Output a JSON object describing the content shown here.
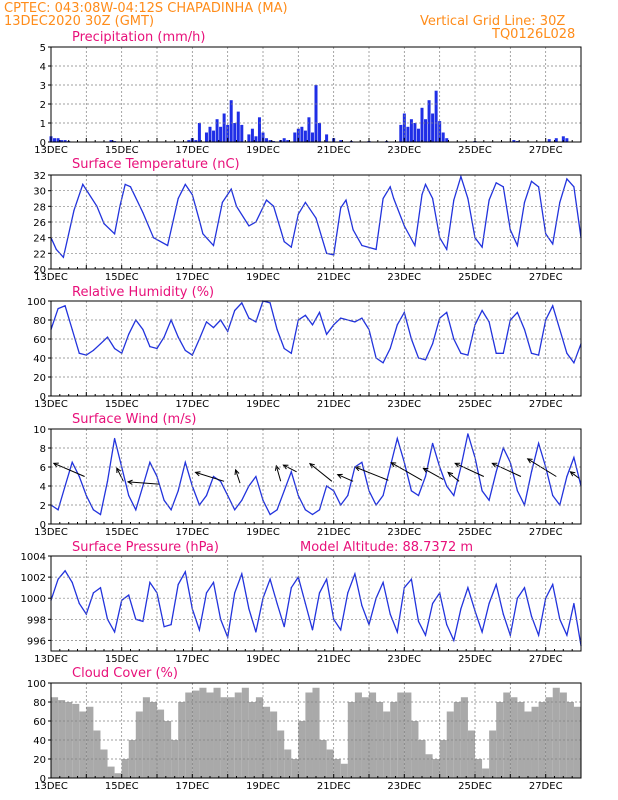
{
  "header": {
    "line1": "CPTEC:   043:08W-04:12S   CHAPADINHA (MA)",
    "line2": "13DEC2020 30Z (GMT)",
    "grid_note": "Vertical Grid Line: 30Z",
    "model_code": "TQ0126L028"
  },
  "colors": {
    "header": "#ff8c1a",
    "title": "#e8107a",
    "line": "#2233dd",
    "bar": "#1f2ee6",
    "cloud": "#a9a9a9",
    "grid": "#808080"
  },
  "chart_data": [
    {
      "type": "bar",
      "title": "Precipitation (mm/h)",
      "x_unit": "days from 13DEC 00Z",
      "x_range": [
        0,
        15
      ],
      "x_tick_labels": [
        "13DEC",
        "15DEC",
        "17DEC",
        "19DEC",
        "21DEC",
        "23DEC",
        "25DEC",
        "27DEC"
      ],
      "ylim": [
        0,
        5
      ],
      "y_ticks": [
        0,
        1,
        2,
        3,
        4,
        5
      ],
      "grid": true,
      "x": [
        0.0,
        0.1,
        0.2,
        0.3,
        0.4,
        0.5,
        1.7,
        1.8,
        3.9,
        4.0,
        4.1,
        4.2,
        4.4,
        4.5,
        4.6,
        4.7,
        4.8,
        4.9,
        5.0,
        5.1,
        5.2,
        5.3,
        5.4,
        5.6,
        5.7,
        5.8,
        5.9,
        6.0,
        6.1,
        6.2,
        6.3,
        6.5,
        6.6,
        6.7,
        6.9,
        7.0,
        7.1,
        7.2,
        7.3,
        7.4,
        7.5,
        7.6,
        7.8,
        8.0,
        8.2,
        8.5,
        9.0,
        9.5,
        9.9,
        10.0,
        10.1,
        10.2,
        10.3,
        10.4,
        10.5,
        10.6,
        10.7,
        10.8,
        10.9,
        11.0,
        11.1,
        11.2,
        12.0,
        13.1,
        13.2,
        14.1,
        14.3,
        14.5,
        14.6
      ],
      "values": [
        0.3,
        0.2,
        0.2,
        0.1,
        0.1,
        0.05,
        0.1,
        0.05,
        0.1,
        0.2,
        0.1,
        1.0,
        0.5,
        0.8,
        0.6,
        1.2,
        0.8,
        1.5,
        0.9,
        2.2,
        1.0,
        1.6,
        0.9,
        0.4,
        0.7,
        0.3,
        1.3,
        0.5,
        0.2,
        0.1,
        0.05,
        0.1,
        0.2,
        0.1,
        0.5,
        0.7,
        0.8,
        0.6,
        1.3,
        0.5,
        3.0,
        1.0,
        0.4,
        0.2,
        0.1,
        0.05,
        0.05,
        0.05,
        0.9,
        1.5,
        0.8,
        1.2,
        1.0,
        0.7,
        1.8,
        1.2,
        2.2,
        1.5,
        2.7,
        1.1,
        0.5,
        0.2,
        0.05,
        0.1,
        0.05,
        0.15,
        0.2,
        0.3,
        0.2
      ]
    },
    {
      "type": "line",
      "title": "Surface Temperature (nC)",
      "x_unit": "days from 13DEC 00Z",
      "x_range": [
        0,
        15
      ],
      "x_tick_labels": [
        "13DEC",
        "15DEC",
        "17DEC",
        "19DEC",
        "21DEC",
        "23DEC",
        "25DEC",
        "27DEC"
      ],
      "ylim": [
        20,
        32
      ],
      "y_ticks": [
        20,
        22,
        24,
        26,
        28,
        30,
        32
      ],
      "grid": true,
      "x": [
        0.0,
        0.15,
        0.35,
        0.65,
        0.9,
        1.3,
        1.5,
        1.8,
        1.95,
        2.1,
        2.25,
        2.6,
        2.9,
        3.3,
        3.6,
        3.8,
        4.0,
        4.2,
        4.3,
        4.6,
        4.85,
        5.1,
        5.25,
        5.6,
        5.8,
        6.1,
        6.3,
        6.5,
        6.6,
        6.8,
        7.0,
        7.2,
        7.5,
        7.8,
        8.0,
        8.2,
        8.35,
        8.55,
        8.8,
        9.2,
        9.4,
        9.6,
        9.7,
        10.0,
        10.3,
        10.5,
        10.6,
        10.8,
        11.0,
        11.2,
        11.4,
        11.6,
        11.8,
        12.0,
        12.2,
        12.4,
        12.6,
        12.8,
        13.0,
        13.2,
        13.4,
        13.6,
        13.8,
        14.0,
        14.2,
        14.4,
        14.6,
        14.8,
        15.0
      ],
      "values": [
        24.0,
        22.5,
        21.5,
        27.5,
        30.8,
        28.0,
        25.8,
        24.5,
        28.0,
        30.8,
        30.5,
        27.2,
        24.0,
        23.0,
        29.0,
        30.8,
        29.5,
        26.2,
        24.5,
        23.0,
        28.5,
        30.2,
        28.0,
        25.5,
        26.0,
        28.8,
        28.0,
        25.0,
        23.5,
        22.8,
        27.0,
        28.5,
        26.5,
        22.0,
        21.8,
        27.8,
        28.8,
        25.0,
        23.0,
        22.5,
        29.0,
        30.5,
        29.0,
        25.5,
        23.0,
        29.5,
        30.8,
        29.0,
        24.0,
        22.5,
        28.8,
        31.8,
        29.0,
        24.0,
        22.8,
        28.8,
        31.0,
        30.5,
        25.0,
        23.0,
        28.5,
        31.2,
        30.5,
        24.5,
        23.2,
        28.5,
        31.5,
        30.5,
        24.0
      ]
    },
    {
      "type": "line",
      "title": "Relative Humidity (%)",
      "x_unit": "days from 13DEC 00Z",
      "x_range": [
        0,
        15
      ],
      "x_tick_labels": [
        "13DEC",
        "15DEC",
        "17DEC",
        "19DEC",
        "21DEC",
        "23DEC",
        "25DEC",
        "27DEC"
      ],
      "ylim": [
        0,
        100
      ],
      "y_ticks": [
        0,
        20,
        40,
        60,
        80,
        100
      ],
      "grid": true,
      "x": [
        0.0,
        0.2,
        0.4,
        0.6,
        0.8,
        1.0,
        1.2,
        1.4,
        1.6,
        1.8,
        2.0,
        2.2,
        2.4,
        2.6,
        2.8,
        3.0,
        3.2,
        3.4,
        3.6,
        3.8,
        4.0,
        4.2,
        4.4,
        4.6,
        4.8,
        5.0,
        5.2,
        5.4,
        5.6,
        5.8,
        6.0,
        6.2,
        6.4,
        6.6,
        6.8,
        7.0,
        7.2,
        7.4,
        7.6,
        7.8,
        8.0,
        8.2,
        8.4,
        8.6,
        8.8,
        9.0,
        9.2,
        9.4,
        9.6,
        9.8,
        10.0,
        10.2,
        10.4,
        10.6,
        10.8,
        11.0,
        11.2,
        11.4,
        11.6,
        11.8,
        12.0,
        12.2,
        12.4,
        12.6,
        12.8,
        13.0,
        13.2,
        13.4,
        13.6,
        13.8,
        14.0,
        14.2,
        14.4,
        14.6,
        14.8,
        15.0
      ],
      "values": [
        70,
        92,
        95,
        70,
        45,
        43,
        48,
        55,
        62,
        50,
        45,
        65,
        80,
        70,
        52,
        50,
        62,
        80,
        62,
        48,
        43,
        60,
        78,
        72,
        80,
        68,
        90,
        98,
        82,
        78,
        100,
        98,
        70,
        50,
        45,
        80,
        85,
        75,
        88,
        65,
        75,
        82,
        80,
        78,
        82,
        70,
        40,
        35,
        50,
        75,
        88,
        60,
        40,
        38,
        55,
        82,
        88,
        60,
        45,
        43,
        75,
        90,
        78,
        45,
        45,
        80,
        88,
        70,
        45,
        43,
        80,
        95,
        70,
        45,
        35,
        55
      ]
    },
    {
      "type": "line",
      "title": "Surface Wind (m/s)",
      "x_unit": "days from 13DEC 00Z",
      "x_range": [
        0,
        15
      ],
      "x_tick_labels": [
        "13DEC",
        "15DEC",
        "17DEC",
        "19DEC",
        "21DEC",
        "23DEC",
        "25DEC",
        "27DEC"
      ],
      "ylim": [
        0,
        10
      ],
      "y_ticks": [
        0,
        2,
        4,
        6,
        8,
        10
      ],
      "grid": true,
      "x": [
        0.0,
        0.2,
        0.4,
        0.6,
        0.8,
        1.0,
        1.2,
        1.4,
        1.6,
        1.8,
        2.0,
        2.2,
        2.4,
        2.6,
        2.8,
        3.0,
        3.2,
        3.4,
        3.6,
        3.8,
        4.0,
        4.2,
        4.4,
        4.6,
        4.8,
        5.0,
        5.2,
        5.4,
        5.6,
        5.8,
        6.0,
        6.2,
        6.4,
        6.6,
        6.8,
        7.0,
        7.2,
        7.4,
        7.6,
        7.8,
        8.0,
        8.2,
        8.4,
        8.6,
        8.8,
        9.0,
        9.2,
        9.4,
        9.6,
        9.8,
        10.0,
        10.2,
        10.4,
        10.6,
        10.8,
        11.0,
        11.2,
        11.4,
        11.6,
        11.8,
        12.0,
        12.2,
        12.4,
        12.6,
        12.8,
        13.0,
        13.2,
        13.4,
        13.6,
        13.8,
        14.0,
        14.2,
        14.4,
        14.6,
        14.8,
        15.0
      ],
      "values": [
        2.0,
        1.5,
        4.0,
        6.5,
        5.0,
        3.0,
        1.5,
        1.0,
        4.5,
        9.0,
        6.0,
        3.0,
        1.5,
        4.0,
        6.5,
        5.0,
        2.5,
        1.5,
        3.5,
        6.5,
        4.0,
        2.0,
        3.0,
        5.0,
        4.5,
        3.0,
        1.5,
        2.5,
        4.0,
        5.0,
        2.5,
        1.0,
        1.5,
        3.5,
        5.5,
        3.0,
        1.5,
        1.0,
        1.5,
        4.0,
        3.5,
        2.0,
        3.0,
        6.0,
        6.5,
        3.5,
        2.0,
        3.0,
        6.0,
        9.0,
        6.5,
        3.5,
        3.0,
        5.0,
        8.5,
        6.0,
        4.0,
        3.0,
        6.0,
        9.5,
        7.0,
        3.5,
        2.5,
        5.5,
        8.0,
        6.5,
        3.5,
        2.0,
        5.5,
        8.5,
        6.0,
        3.0,
        2.0,
        5.0,
        7.0,
        4.0
      ]
    },
    {
      "type": "line",
      "title": "Surface Pressure (hPa)",
      "annotation": "Model Altitude: 88.7372  m",
      "x_unit": "days from 13DEC 00Z",
      "x_range": [
        0,
        15
      ],
      "x_tick_labels": [
        "13DEC",
        "15DEC",
        "17DEC",
        "19DEC",
        "21DEC",
        "23DEC",
        "25DEC",
        "27DEC"
      ],
      "ylim": [
        995,
        1004
      ],
      "y_ticks": [
        996,
        998,
        1000,
        1002,
        1004
      ],
      "grid": true,
      "x": [
        0.0,
        0.2,
        0.4,
        0.6,
        0.8,
        1.0,
        1.2,
        1.4,
        1.6,
        1.8,
        2.0,
        2.2,
        2.4,
        2.6,
        2.8,
        3.0,
        3.2,
        3.4,
        3.6,
        3.8,
        4.0,
        4.2,
        4.4,
        4.6,
        4.8,
        5.0,
        5.2,
        5.4,
        5.6,
        5.8,
        6.0,
        6.2,
        6.4,
        6.6,
        6.8,
        7.0,
        7.2,
        7.4,
        7.6,
        7.8,
        8.0,
        8.2,
        8.4,
        8.6,
        8.8,
        9.0,
        9.2,
        9.4,
        9.6,
        9.8,
        10.0,
        10.2,
        10.4,
        10.6,
        10.8,
        11.0,
        11.2,
        11.4,
        11.6,
        11.8,
        12.0,
        12.2,
        12.4,
        12.6,
        12.8,
        13.0,
        13.2,
        13.4,
        13.6,
        13.8,
        14.0,
        14.2,
        14.4,
        14.6,
        14.8,
        15.0
      ],
      "values": [
        999.8,
        1001.8,
        1002.6,
        1001.5,
        999.5,
        998.5,
        1000.5,
        1001.0,
        998.0,
        996.8,
        999.8,
        1000.3,
        998.0,
        997.8,
        1001.5,
        1000.5,
        997.3,
        997.5,
        1001.3,
        1002.5,
        999.0,
        997.0,
        1000.5,
        1001.5,
        998.0,
        996.3,
        1000.5,
        1002.3,
        999.0,
        996.8,
        1000.0,
        1001.8,
        999.5,
        997.3,
        1001.0,
        1002.0,
        999.5,
        997.0,
        1000.5,
        1001.8,
        998.0,
        997.0,
        1000.5,
        1002.3,
        999.3,
        997.5,
        1000.0,
        1001.5,
        998.5,
        996.8,
        1001.0,
        1001.8,
        997.8,
        996.5,
        999.5,
        1000.5,
        997.5,
        996.0,
        999.0,
        1001.0,
        998.8,
        996.8,
        999.5,
        1001.3,
        998.5,
        996.5,
        1000.0,
        1001.0,
        998.3,
        996.5,
        1000.0,
        1001.3,
        998.0,
        996.5,
        999.5,
        995.5
      ]
    },
    {
      "type": "area",
      "title": "Cloud Cover (%)",
      "x_unit": "days from 13DEC 00Z",
      "x_range": [
        0,
        15
      ],
      "x_tick_labels": [
        "13DEC",
        "15DEC",
        "17DEC",
        "19DEC",
        "21DEC",
        "23DEC",
        "25DEC",
        "27DEC"
      ],
      "ylim": [
        0,
        100
      ],
      "y_ticks": [
        0,
        20,
        40,
        60,
        80,
        100
      ],
      "grid": true,
      "x": [
        0.0,
        0.2,
        0.4,
        0.6,
        0.8,
        1.0,
        1.2,
        1.4,
        1.6,
        1.8,
        2.0,
        2.2,
        2.4,
        2.6,
        2.8,
        3.0,
        3.2,
        3.4,
        3.6,
        3.8,
        4.0,
        4.2,
        4.4,
        4.6,
        4.8,
        5.0,
        5.2,
        5.4,
        5.6,
        5.8,
        6.0,
        6.2,
        6.4,
        6.6,
        6.8,
        7.0,
        7.2,
        7.4,
        7.6,
        7.8,
        8.0,
        8.2,
        8.4,
        8.6,
        8.8,
        9.0,
        9.2,
        9.4,
        9.6,
        9.8,
        10.0,
        10.2,
        10.4,
        10.6,
        10.8,
        11.0,
        11.2,
        11.4,
        11.6,
        11.8,
        12.0,
        12.2,
        12.4,
        12.6,
        12.8,
        13.0,
        13.2,
        13.4,
        13.6,
        13.8,
        14.0,
        14.2,
        14.4,
        14.6,
        14.8,
        15.0
      ],
      "values": [
        85,
        82,
        80,
        78,
        70,
        75,
        50,
        30,
        12,
        5,
        20,
        40,
        70,
        85,
        80,
        72,
        60,
        40,
        80,
        90,
        92,
        95,
        90,
        95,
        85,
        85,
        90,
        95,
        80,
        85,
        75,
        70,
        50,
        30,
        20,
        60,
        90,
        95,
        40,
        30,
        20,
        15,
        80,
        90,
        85,
        90,
        80,
        70,
        80,
        90,
        90,
        60,
        40,
        25,
        20,
        40,
        70,
        80,
        85,
        50,
        20,
        10,
        50,
        80,
        90,
        85,
        80,
        70,
        75,
        80,
        85,
        95,
        90,
        80,
        75,
        78
      ]
    },
    {
      "type": "scatter",
      "title": "Surface Wind (m/s) direction vectors",
      "x_unit": "days from 13DEC 00Z",
      "x_range": [
        0,
        15
      ],
      "ylim": [
        0,
        10
      ],
      "vectors": [
        {
          "x": 0.95,
          "y": 5.0,
          "u": -1.4,
          "v": 0.6
        },
        {
          "x": 2.05,
          "y": 4.5,
          "u": -0.3,
          "v": 0.6
        },
        {
          "x": 3.05,
          "y": 4.2,
          "u": -1.4,
          "v": 0.1
        },
        {
          "x": 4.9,
          "y": 4.5,
          "u": -1.3,
          "v": 0.4
        },
        {
          "x": 5.35,
          "y": 4.3,
          "u": -0.2,
          "v": 0.6
        },
        {
          "x": 6.5,
          "y": 4.5,
          "u": -0.2,
          "v": 0.7
        },
        {
          "x": 6.95,
          "y": 5.5,
          "u": -0.6,
          "v": 0.3
        },
        {
          "x": 7.95,
          "y": 4.5,
          "u": -1.0,
          "v": 0.8
        },
        {
          "x": 8.55,
          "y": 4.5,
          "u": -0.7,
          "v": 0.3
        },
        {
          "x": 9.55,
          "y": 4.6,
          "u": -1.5,
          "v": 0.6
        },
        {
          "x": 10.5,
          "y": 4.6,
          "u": -1.4,
          "v": 0.8
        },
        {
          "x": 11.1,
          "y": 4.7,
          "u": -0.9,
          "v": 0.5
        },
        {
          "x": 11.55,
          "y": 4.5,
          "u": -0.5,
          "v": 0.4
        },
        {
          "x": 12.25,
          "y": 5.0,
          "u": -1.3,
          "v": 0.6
        },
        {
          "x": 13.3,
          "y": 5.0,
          "u": -1.3,
          "v": 0.6
        },
        {
          "x": 14.3,
          "y": 5.0,
          "u": -1.3,
          "v": 0.8
        },
        {
          "x": 14.95,
          "y": 4.8,
          "u": -0.4,
          "v": 0.3
        }
      ]
    }
  ]
}
